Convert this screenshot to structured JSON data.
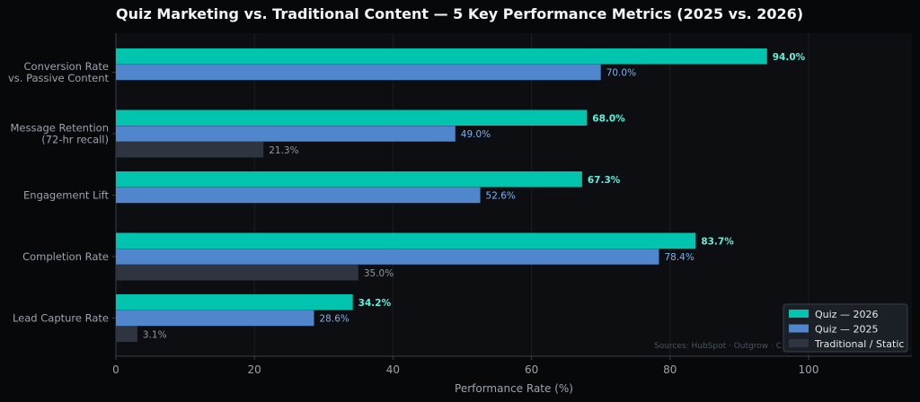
{
  "chart_data": {
    "type": "bar",
    "orientation": "horizontal",
    "title": "Quiz Marketing vs. Traditional Content — 5 Key Performance Metrics (2025 vs. 2026)",
    "xlabel": "Performance Rate (%)",
    "ylabel": "",
    "xlim": [
      0,
      115
    ],
    "xticks": [
      "0",
      "20",
      "40",
      "60",
      "80",
      "100"
    ],
    "categories": [
      [
        "Conversion Rate",
        "vs. Passive Content"
      ],
      [
        "Message Retention",
        "(72-hr recall)"
      ],
      [
        "Engagement Lift"
      ],
      [
        "Completion Rate"
      ],
      [
        "Lead Capture Rate"
      ]
    ],
    "series": [
      {
        "name": "Quiz — 2026",
        "color": "#00c4ad",
        "label_color": "#5ff0dc",
        "bold": true,
        "values": [
          94.0,
          68.0,
          67.3,
          83.7,
          34.2
        ],
        "labels": [
          "94.0%",
          "68.0%",
          "67.3%",
          "83.7%",
          "34.2%"
        ]
      },
      {
        "name": "Quiz — 2025",
        "color": "#4f86cc",
        "label_color": "#7fb0ee",
        "bold": false,
        "values": [
          70.0,
          49.0,
          52.6,
          78.4,
          28.6
        ],
        "labels": [
          "70.0%",
          "49.0%",
          "52.6%",
          "78.4%",
          "28.6%"
        ]
      },
      {
        "name": "Traditional / Static",
        "color": "#2e3540",
        "label_color": "#8e969f",
        "bold": false,
        "values": [
          null,
          21.3,
          null,
          35.0,
          3.1
        ],
        "labels": [
          "",
          "21.3%",
          "",
          "35.0%",
          "3.1%"
        ]
      }
    ],
    "grid": true,
    "legend_position": "bottom-right",
    "source_note": "Sources: HubSpot · Outgrow · C"
  }
}
